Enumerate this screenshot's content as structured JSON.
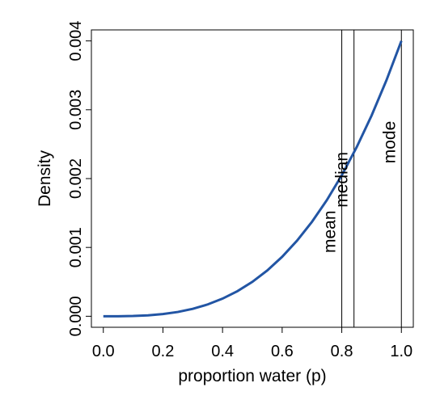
{
  "chart_data": {
    "type": "line",
    "title": "",
    "xlabel": "proportion water (p)",
    "ylabel": "Density",
    "xlim": [
      -0.04,
      1.04
    ],
    "ylim": [
      -0.00016,
      0.00416
    ],
    "x_ticks": [
      {
        "value": 0.0,
        "label": "0.0"
      },
      {
        "value": 0.2,
        "label": "0.2"
      },
      {
        "value": 0.4,
        "label": "0.4"
      },
      {
        "value": 0.6,
        "label": "0.6"
      },
      {
        "value": 0.8,
        "label": "0.8"
      },
      {
        "value": 1.0,
        "label": "1.0"
      }
    ],
    "y_ticks": [
      {
        "value": 0.0,
        "label": "0.000"
      },
      {
        "value": 0.001,
        "label": "0.001"
      },
      {
        "value": 0.002,
        "label": "0.002"
      },
      {
        "value": 0.003,
        "label": "0.003"
      },
      {
        "value": 0.004,
        "label": "0.004"
      }
    ],
    "series": [
      {
        "color": "#2255a4",
        "x": [
          0.0,
          0.05,
          0.1,
          0.15,
          0.2,
          0.25,
          0.3,
          0.35,
          0.4,
          0.45,
          0.5,
          0.55,
          0.6,
          0.65,
          0.7,
          0.75,
          0.8,
          0.85,
          0.9,
          0.95,
          1.0
        ],
        "y": [
          0.0,
          5e-07,
          4e-06,
          1.35e-05,
          3.2e-05,
          6.25e-05,
          0.000108,
          0.0001715,
          0.000256,
          0.0003645,
          0.0005,
          0.0006655,
          0.000864,
          0.0010985,
          0.001372,
          0.0016875,
          0.002048,
          0.0024565,
          0.002916,
          0.0034295,
          0.004
        ]
      }
    ],
    "annotations": [
      {
        "label": "mean",
        "x": 0.8,
        "text_y": 0.00092
      },
      {
        "label": "median",
        "x": 0.841,
        "text_y": 0.00158
      },
      {
        "label": "mode",
        "x": 1.0,
        "text_y": 0.00222
      }
    ],
    "grid": false,
    "legend": "none"
  }
}
